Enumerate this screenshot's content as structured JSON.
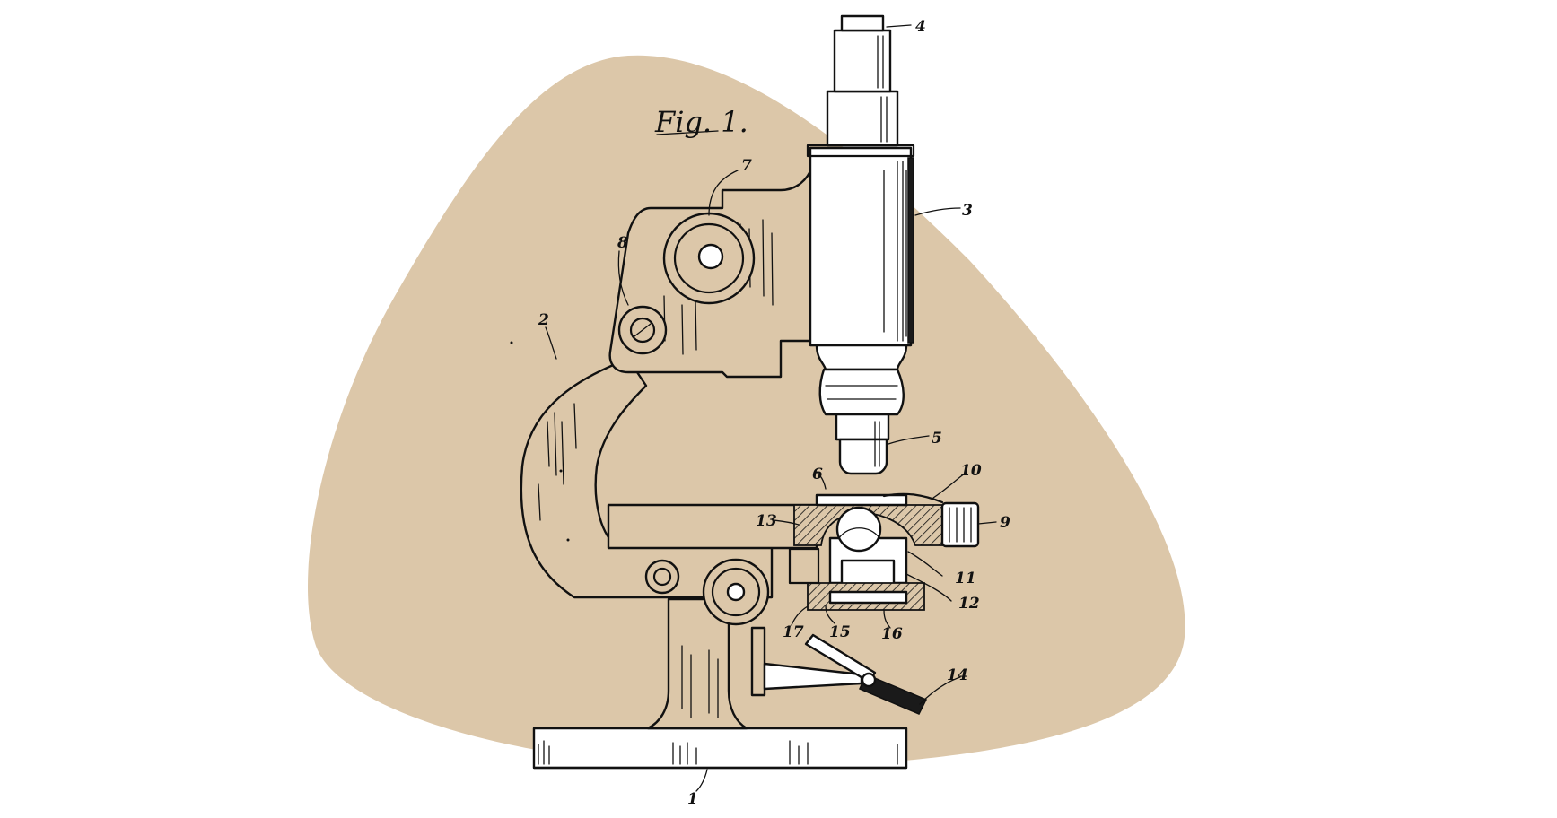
{
  "figure": {
    "title": "Fig. 1.",
    "background_color": "#dcc7a9",
    "ink_color": "#111111"
  },
  "reference_labels": {
    "base": "1",
    "arm": "2",
    "body_tube": "3",
    "eyepiece": "4",
    "objective": "5",
    "slide_mark": "6",
    "focus_knob": "7",
    "arm_screw": "8",
    "stage_knob": "9",
    "stage_clip": "10",
    "condenser_ring": "11",
    "condenser_mount": "12",
    "stage_section": "13",
    "mirror_lever": "14",
    "diaphragm_left": "15",
    "diaphragm_ring": "16",
    "diaphragm_pin": "17"
  }
}
